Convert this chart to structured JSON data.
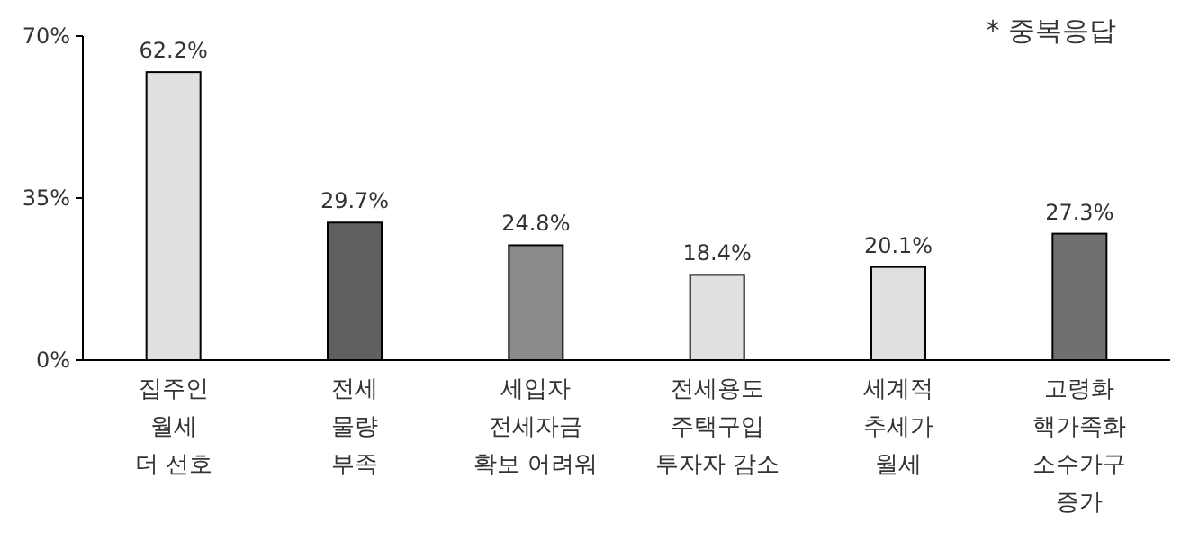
{
  "chart_data": {
    "type": "bar",
    "categories": [
      "집주인\n월세\n더 선호",
      "전세\n물량\n부족",
      "세입자\n전세자금\n확보 어려워",
      "전세용도\n주택구입\n투자자 감소",
      "세계적\n추세가\n월세",
      "고령화\n핵가족화\n소수가구\n증가"
    ],
    "values": [
      62.2,
      29.7,
      24.8,
      18.4,
      20.1,
      27.3
    ],
    "value_labels": [
      "62.2%",
      "29.7%",
      "24.8%",
      "18.4%",
      "20.1%",
      "27.3%"
    ],
    "colors": [
      "#e0e0e0",
      "#606060",
      "#8a8a8a",
      "#e0e0e0",
      "#e0e0e0",
      "#707070"
    ],
    "ylim": [
      0,
      70
    ],
    "yticks": [
      {
        "value": 0,
        "label": "0%"
      },
      {
        "value": 35,
        "label": "35%"
      },
      {
        "value": 70,
        "label": "70%"
      }
    ],
    "annotations": [
      "* 중복응답"
    ]
  }
}
